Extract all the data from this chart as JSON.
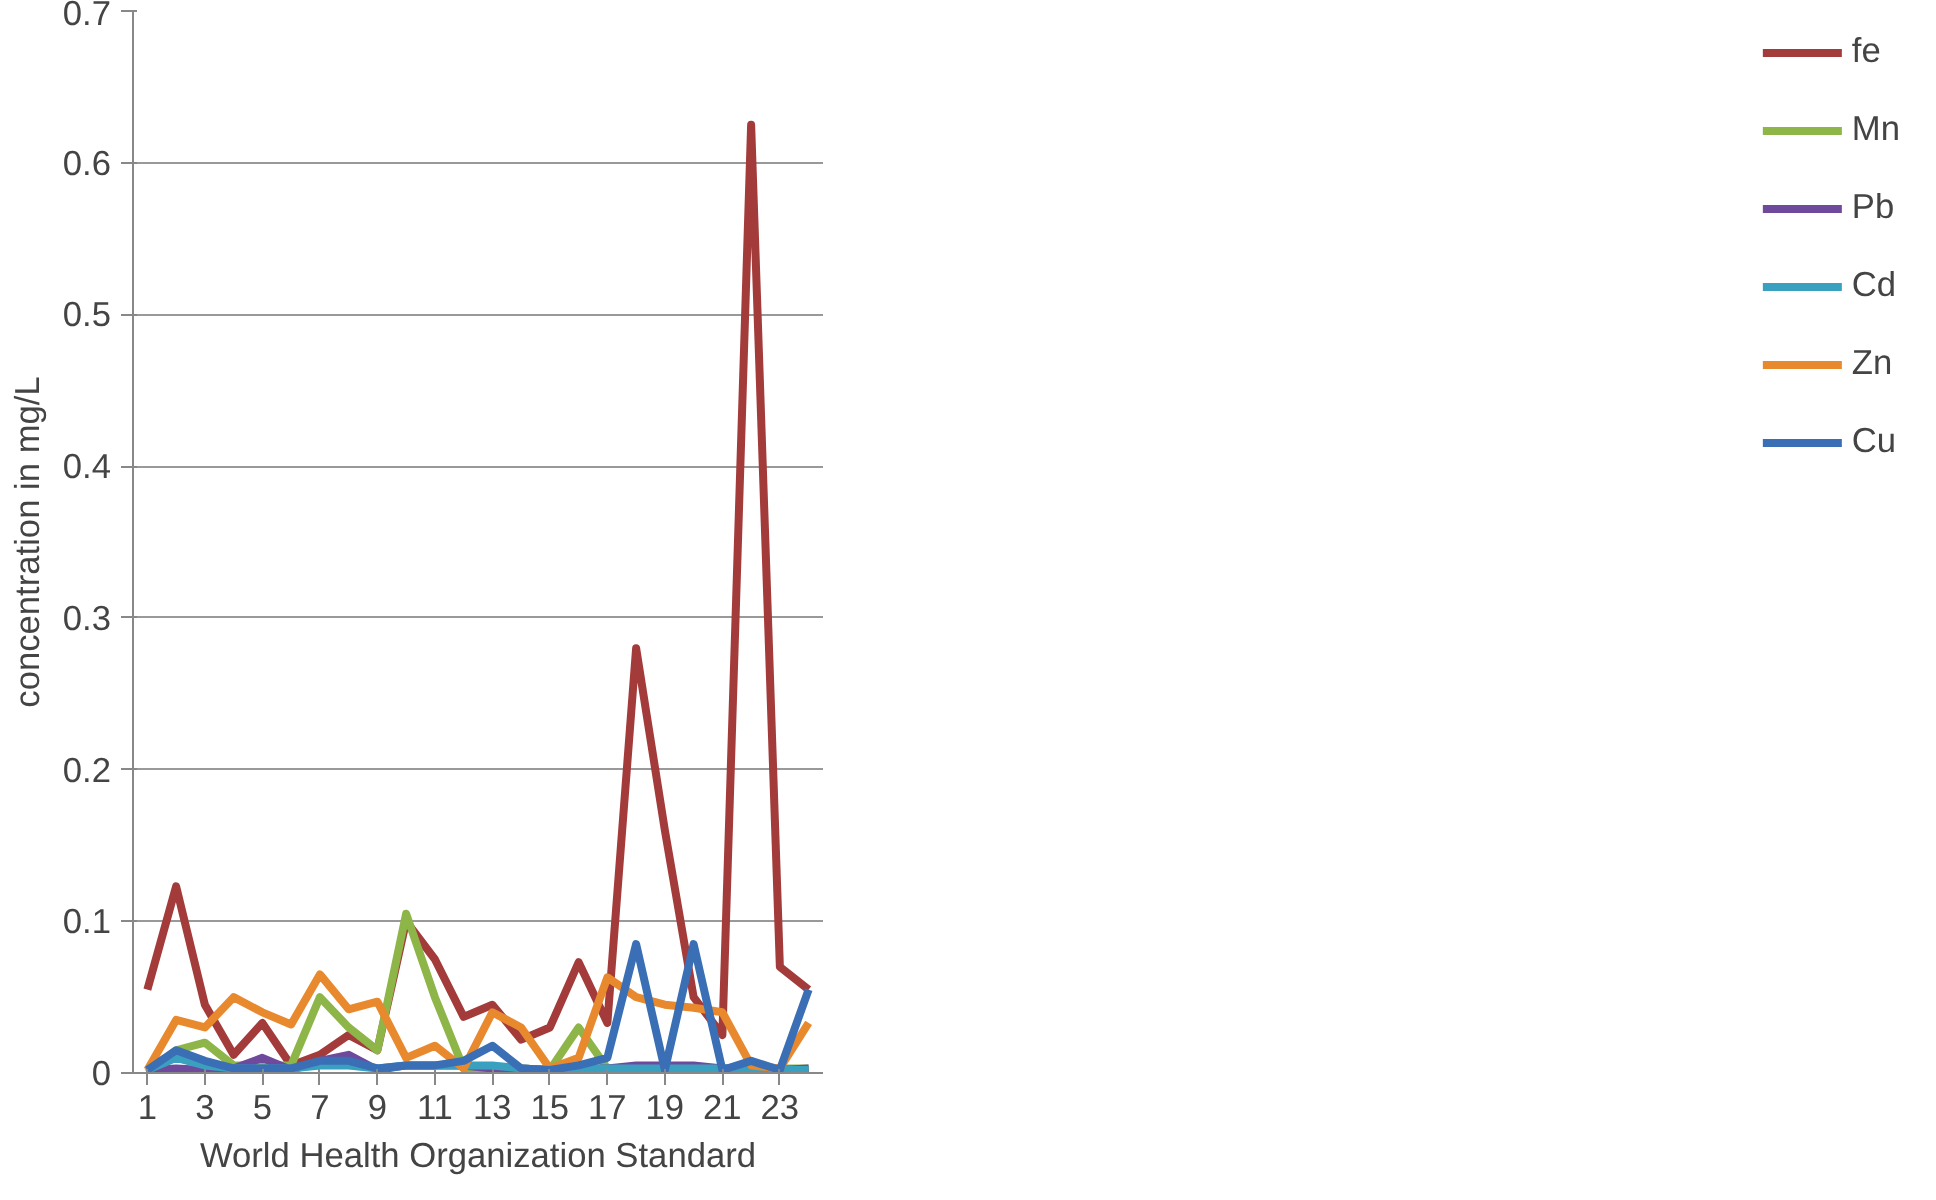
{
  "chart_data": {
    "type": "line",
    "xlabel": "World Health Organization Standard",
    "ylabel": "concentration in mg/L",
    "x": [
      1,
      2,
      3,
      4,
      5,
      6,
      7,
      8,
      9,
      10,
      11,
      12,
      13,
      14,
      15,
      16,
      17,
      18,
      19,
      20,
      21,
      22,
      23,
      24
    ],
    "xlim": [
      0.5,
      24.5
    ],
    "xticks": [
      1,
      3,
      5,
      7,
      9,
      11,
      13,
      15,
      17,
      19,
      21,
      23
    ],
    "ylim": [
      0,
      0.7
    ],
    "yticks": [
      0,
      0.1,
      0.2,
      0.3,
      0.4,
      0.5,
      0.6,
      0.7
    ],
    "grid": "y",
    "legend": "right",
    "marker": "none",
    "line_style": "solid",
    "series": [
      {
        "name": "fe",
        "color": "#a33b3b",
        "values": [
          0.055,
          0.123,
          0.045,
          0.012,
          0.033,
          0.005,
          0.012,
          0.025,
          0.015,
          0.1,
          0.075,
          0.037,
          0.045,
          0.022,
          0.03,
          0.073,
          0.033,
          0.28,
          0.16,
          0.05,
          0.025,
          0.625,
          0.07,
          0.055
        ]
      },
      {
        "name": "Mn",
        "color": "#8db548",
        "values": [
          0.0,
          0.015,
          0.02,
          0.005,
          0.005,
          0.005,
          0.05,
          0.03,
          0.015,
          0.105,
          0.05,
          0.003,
          0.003,
          0.003,
          0.002,
          0.03,
          0.003,
          0.003,
          0.003,
          0.003,
          0.003,
          0.003,
          0.003,
          0.003
        ]
      },
      {
        "name": "Pb",
        "color": "#6f4a9c",
        "values": [
          0.002,
          0.003,
          0.002,
          0.003,
          0.01,
          0.002,
          0.008,
          0.012,
          0.002,
          0.005,
          0.005,
          0.005,
          0.003,
          0.003,
          0.002,
          0.003,
          0.003,
          0.005,
          0.005,
          0.005,
          0.003,
          0.003,
          0.002,
          0.003
        ]
      },
      {
        "name": "Cd",
        "color": "#3aa0c0",
        "values": [
          0.002,
          0.01,
          0.005,
          0.003,
          0.003,
          0.003,
          0.005,
          0.005,
          0.003,
          0.005,
          0.005,
          0.005,
          0.005,
          0.003,
          0.002,
          0.003,
          0.003,
          0.003,
          0.003,
          0.003,
          0.003,
          0.003,
          0.002,
          0.002
        ]
      },
      {
        "name": "Zn",
        "color": "#e8892e",
        "values": [
          0.002,
          0.035,
          0.03,
          0.05,
          0.04,
          0.032,
          0.065,
          0.042,
          0.047,
          0.01,
          0.018,
          0.003,
          0.04,
          0.03,
          0.003,
          0.01,
          0.063,
          0.05,
          0.045,
          0.043,
          0.04,
          0.005,
          0.003,
          0.033
        ]
      },
      {
        "name": "Cu",
        "color": "#3a6fb5",
        "values": [
          0.002,
          0.015,
          0.008,
          0.003,
          0.003,
          0.003,
          0.008,
          0.008,
          0.003,
          0.005,
          0.005,
          0.008,
          0.018,
          0.003,
          0.002,
          0.005,
          0.01,
          0.085,
          0.002,
          0.085,
          0.002,
          0.008,
          0.002,
          0.055
        ]
      }
    ]
  }
}
